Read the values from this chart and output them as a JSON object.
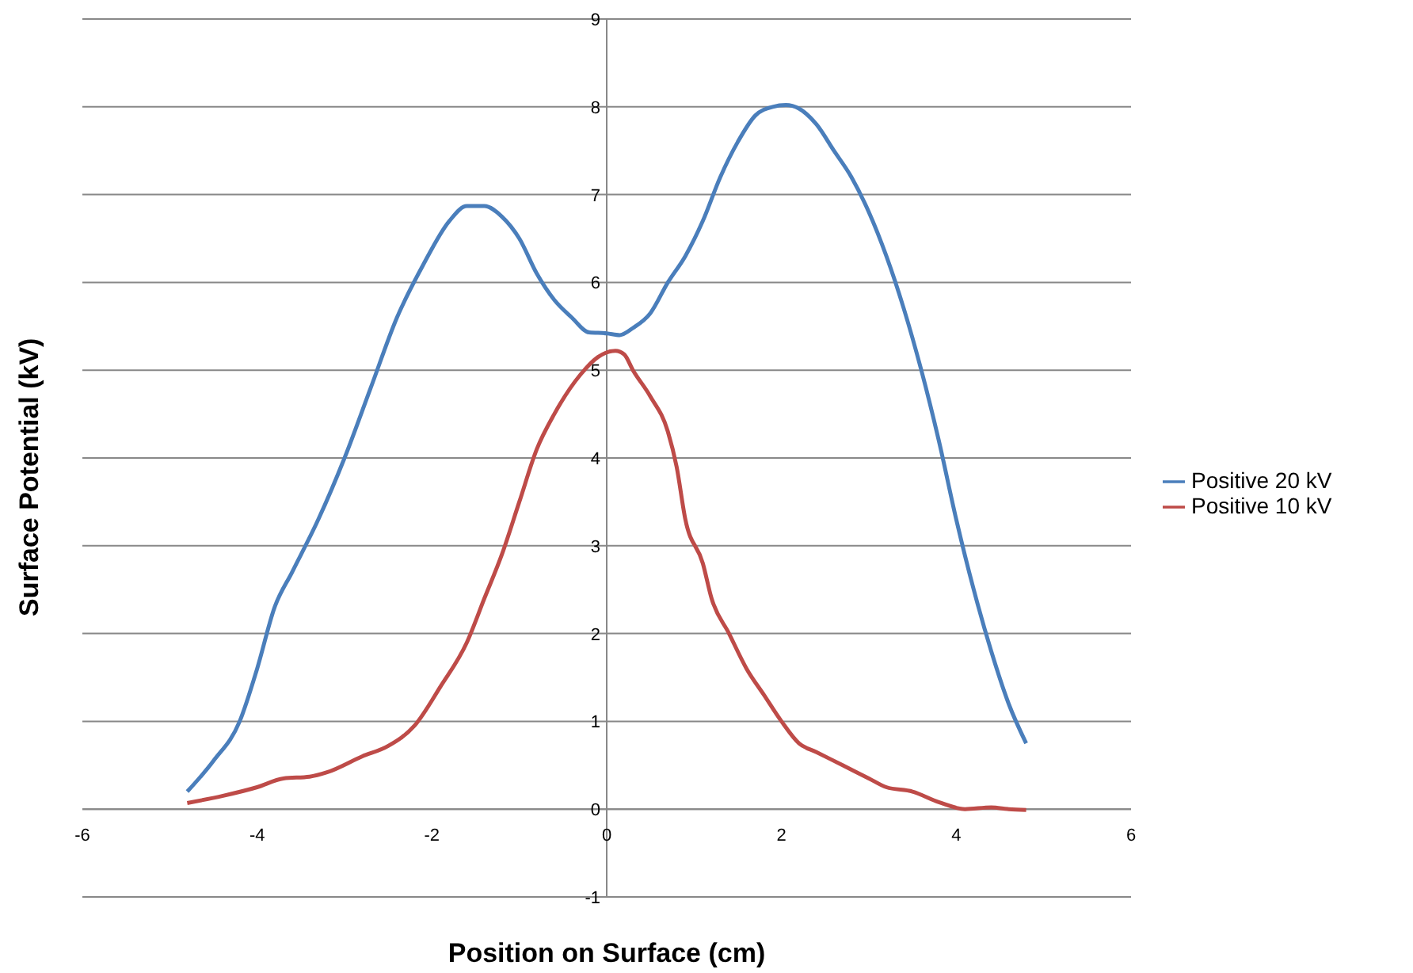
{
  "chart_data": {
    "type": "line",
    "xlabel": "Position on Surface (cm)",
    "ylabel": "Surface Potential (kV)",
    "xlim": [
      -6,
      6
    ],
    "xticks": [
      -6,
      -4,
      -2,
      0,
      2,
      4,
      6
    ],
    "ylim": [
      -1,
      9
    ],
    "yticks": [
      -1,
      0,
      1,
      2,
      3,
      4,
      5,
      6,
      7,
      8,
      9
    ],
    "grid": "y",
    "legend": "right",
    "series": [
      {
        "name": "Positive 20 kV",
        "color": "#4a7ebb",
        "x": [
          -4.8,
          -4.5,
          -4.2,
          -4.0,
          -3.8,
          -3.6,
          -3.3,
          -3.0,
          -2.7,
          -2.4,
          -2.1,
          -1.8,
          -1.6,
          -1.4,
          -1.2,
          -1.0,
          -0.8,
          -0.6,
          -0.4,
          -0.2,
          0,
          0.15,
          0.3,
          0.5,
          0.7,
          0.9,
          1.1,
          1.3,
          1.5,
          1.7,
          1.9,
          2.05,
          2.2,
          2.4,
          2.6,
          2.8,
          3.0,
          3.2,
          3.4,
          3.6,
          3.8,
          4.0,
          4.2,
          4.4,
          4.6,
          4.8
        ],
        "values": [
          0.2,
          0.55,
          1.0,
          1.6,
          2.3,
          2.7,
          3.3,
          4.0,
          4.8,
          5.6,
          6.2,
          6.7,
          6.87,
          6.87,
          6.75,
          6.5,
          6.1,
          5.8,
          5.6,
          5.43,
          5.42,
          5.4,
          5.48,
          5.65,
          6.0,
          6.3,
          6.7,
          7.2,
          7.6,
          7.9,
          8.0,
          8.02,
          7.98,
          7.8,
          7.5,
          7.2,
          6.8,
          6.3,
          5.7,
          5.0,
          4.2,
          3.3,
          2.5,
          1.8,
          1.2,
          0.75
        ]
      },
      {
        "name": "Positive 10 kV",
        "color": "#be4b48",
        "x": [
          -4.8,
          -4.4,
          -4.0,
          -3.7,
          -3.4,
          -3.2,
          -2.8,
          -2.5,
          -2.2,
          -1.9,
          -1.6,
          -1.4,
          -1.2,
          -1.0,
          -0.8,
          -0.6,
          -0.3,
          -0.1,
          0.1,
          0.2,
          0.3,
          0.5,
          0.7,
          0.8,
          0.9,
          1.1,
          1.2,
          1.4,
          1.6,
          1.8,
          2.0,
          2.2,
          2.4,
          2.7,
          3.0,
          3.2,
          3.5,
          3.8,
          4.1,
          4.4,
          4.6,
          4.8
        ],
        "values": [
          0.07,
          0.15,
          0.25,
          0.35,
          0.37,
          0.42,
          0.6,
          0.72,
          0.95,
          1.4,
          1.9,
          2.4,
          2.9,
          3.5,
          4.1,
          4.5,
          4.95,
          5.15,
          5.22,
          5.18,
          5.0,
          4.7,
          4.3,
          3.9,
          3.3,
          2.8,
          2.4,
          2.0,
          1.6,
          1.3,
          1.0,
          0.75,
          0.65,
          0.5,
          0.35,
          0.25,
          0.2,
          0.08,
          0.0,
          0.02,
          0.0,
          -0.01
        ]
      }
    ]
  }
}
